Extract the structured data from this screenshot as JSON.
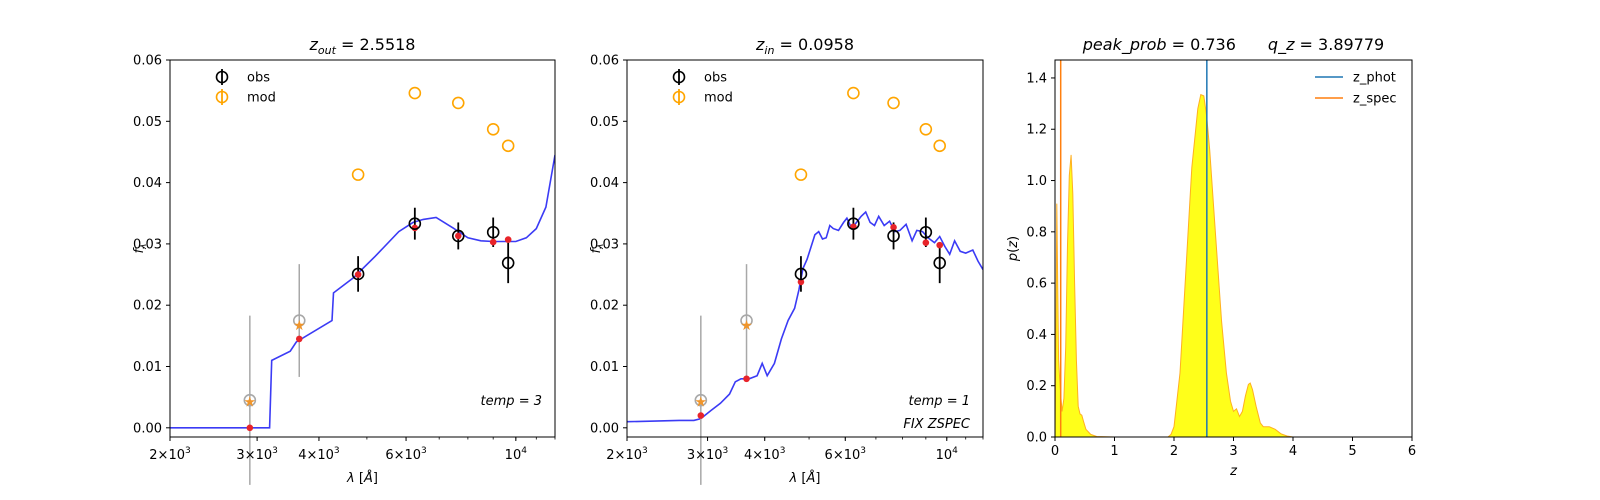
{
  "chart_data": [
    {
      "type": "scatter",
      "panel": "sed-out",
      "title": "z_out = 2.5518",
      "title_parts": {
        "var": "z",
        "sub": "out",
        "eq": " = 2.5518"
      },
      "xlabel": "λ [Å]",
      "ylabel": "f_λ",
      "xscale": "log",
      "xlim": [
        2000,
        12000
      ],
      "ylim": [
        -0.0015,
        0.06
      ],
      "xticks": [
        {
          "v": 2000,
          "m": "2",
          "e": "3"
        },
        {
          "v": 3000,
          "m": "3",
          "e": "3"
        },
        {
          "v": 4000,
          "m": "4",
          "e": "3"
        },
        {
          "v": 6000,
          "m": "6",
          "e": "3"
        },
        {
          "v": 10000,
          "m": "10",
          "e": "4"
        }
      ],
      "yticks": [
        "0.00",
        "0.01",
        "0.02",
        "0.03",
        "0.04",
        "0.05",
        "0.06"
      ],
      "legend": [
        "obs",
        "mod"
      ],
      "annotations": [
        "temp = 3"
      ],
      "template_curve": [
        [
          2000,
          0
        ],
        [
          2700,
          0
        ],
        [
          3180,
          0
        ],
        [
          3210,
          0.011
        ],
        [
          3500,
          0.0125
        ],
        [
          3600,
          0.014
        ],
        [
          4250,
          0.0175
        ],
        [
          4280,
          0.022
        ],
        [
          4700,
          0.0245
        ],
        [
          5200,
          0.028
        ],
        [
          5800,
          0.032
        ],
        [
          6200,
          0.0335
        ],
        [
          6500,
          0.034
        ],
        [
          6900,
          0.0343
        ],
        [
          7500,
          0.0325
        ],
        [
          8000,
          0.031
        ],
        [
          8500,
          0.0305
        ],
        [
          9000,
          0.0304
        ],
        [
          10000,
          0.0304
        ],
        [
          10500,
          0.031
        ],
        [
          11000,
          0.0325
        ],
        [
          11500,
          0.036
        ],
        [
          12000,
          0.0445
        ]
      ],
      "obs": [
        {
          "x": 2900,
          "y": 0.0045,
          "err": 0.0138,
          "faded": true
        },
        {
          "x": 3650,
          "y": 0.0175,
          "err": 0.0092,
          "faded": true
        },
        {
          "x": 4800,
          "y": 0.0251,
          "err": 0.0029
        },
        {
          "x": 6250,
          "y": 0.0333,
          "err": 0.0026
        },
        {
          "x": 7650,
          "y": 0.0313,
          "err": 0.0022
        },
        {
          "x": 9000,
          "y": 0.0319,
          "err": 0.0024
        },
        {
          "x": 9650,
          "y": 0.0269,
          "err": 0.0033
        }
      ],
      "mod": [
        {
          "x": 4800,
          "y": 0.0413
        },
        {
          "x": 6250,
          "y": 0.0546
        },
        {
          "x": 7650,
          "y": 0.053
        },
        {
          "x": 9000,
          "y": 0.0487
        },
        {
          "x": 9650,
          "y": 0.046
        }
      ],
      "stars": [
        {
          "x": 2900,
          "y": 0.0043
        },
        {
          "x": 3650,
          "y": 0.0168
        }
      ],
      "model_points": [
        {
          "x": 2900,
          "y": 0.0
        },
        {
          "x": 3650,
          "y": 0.0145
        },
        {
          "x": 4800,
          "y": 0.025
        },
        {
          "x": 6250,
          "y": 0.0326
        },
        {
          "x": 7650,
          "y": 0.0313
        },
        {
          "x": 9000,
          "y": 0.0303
        },
        {
          "x": 9650,
          "y": 0.0307
        }
      ]
    },
    {
      "type": "scatter",
      "panel": "sed-in",
      "title": "z_in = 0.0958",
      "title_parts": {
        "var": "z",
        "sub": "in",
        "eq": " = 0.0958"
      },
      "xlabel": "λ [Å]",
      "ylabel": "f_λ",
      "xscale": "log",
      "xlim": [
        2000,
        12000
      ],
      "ylim": [
        -0.0015,
        0.06
      ],
      "xticks": [
        {
          "v": 2000,
          "m": "2",
          "e": "3"
        },
        {
          "v": 3000,
          "m": "3",
          "e": "3"
        },
        {
          "v": 4000,
          "m": "4",
          "e": "3"
        },
        {
          "v": 6000,
          "m": "6",
          "e": "3"
        },
        {
          "v": 10000,
          "m": "10",
          "e": "4"
        }
      ],
      "yticks": [
        "0.00",
        "0.01",
        "0.02",
        "0.03",
        "0.04",
        "0.05",
        "0.06"
      ],
      "legend": [
        "obs",
        "mod"
      ],
      "annotations": [
        "temp = 1",
        "FIX ZSPEC"
      ],
      "template_curve": [
        [
          2000,
          0.001
        ],
        [
          2300,
          0.0011
        ],
        [
          2600,
          0.0012
        ],
        [
          2800,
          0.0012
        ],
        [
          2900,
          0.0015
        ],
        [
          3050,
          0.0028
        ],
        [
          3200,
          0.004
        ],
        [
          3350,
          0.0055
        ],
        [
          3450,
          0.0075
        ],
        [
          3550,
          0.008
        ],
        [
          3700,
          0.008
        ],
        [
          3850,
          0.0085
        ],
        [
          3950,
          0.0105
        ],
        [
          4050,
          0.0085
        ],
        [
          4200,
          0.0105
        ],
        [
          4350,
          0.0145
        ],
        [
          4500,
          0.0175
        ],
        [
          4650,
          0.0195
        ],
        [
          4750,
          0.0225
        ],
        [
          4850,
          0.026
        ],
        [
          4950,
          0.0275
        ],
        [
          5050,
          0.0295
        ],
        [
          5150,
          0.0315
        ],
        [
          5250,
          0.032
        ],
        [
          5350,
          0.0308
        ],
        [
          5450,
          0.031
        ],
        [
          5550,
          0.033
        ],
        [
          5650,
          0.0325
        ],
        [
          5800,
          0.0322
        ],
        [
          5950,
          0.0335
        ],
        [
          6050,
          0.0342
        ],
        [
          6200,
          0.0325
        ],
        [
          6350,
          0.0335
        ],
        [
          6500,
          0.0345
        ],
        [
          6650,
          0.0352
        ],
        [
          6800,
          0.0335
        ],
        [
          6950,
          0.033
        ],
        [
          7100,
          0.0345
        ],
        [
          7300,
          0.033
        ],
        [
          7500,
          0.0337
        ],
        [
          7700,
          0.032
        ],
        [
          7900,
          0.0322
        ],
        [
          8150,
          0.0332
        ],
        [
          8400,
          0.0305
        ],
        [
          8600,
          0.0322
        ],
        [
          8850,
          0.032
        ],
        [
          9100,
          0.031
        ],
        [
          9400,
          0.0302
        ],
        [
          9650,
          0.0312
        ],
        [
          9900,
          0.0296
        ],
        [
          10150,
          0.0283
        ],
        [
          10400,
          0.0305
        ],
        [
          10700,
          0.0288
        ],
        [
          11000,
          0.0285
        ],
        [
          11400,
          0.029
        ],
        [
          11700,
          0.0272
        ],
        [
          12000,
          0.0258
        ]
      ],
      "obs": [
        {
          "x": 2900,
          "y": 0.0045,
          "err": 0.0138,
          "faded": true
        },
        {
          "x": 3650,
          "y": 0.0175,
          "err": 0.0092,
          "faded": true
        },
        {
          "x": 4800,
          "y": 0.0251,
          "err": 0.0029
        },
        {
          "x": 6250,
          "y": 0.0333,
          "err": 0.0026
        },
        {
          "x": 7650,
          "y": 0.0313,
          "err": 0.0022
        },
        {
          "x": 9000,
          "y": 0.0319,
          "err": 0.0024
        },
        {
          "x": 9650,
          "y": 0.0269,
          "err": 0.0033
        }
      ],
      "mod": [
        {
          "x": 4800,
          "y": 0.0413
        },
        {
          "x": 6250,
          "y": 0.0546
        },
        {
          "x": 7650,
          "y": 0.053
        },
        {
          "x": 9000,
          "y": 0.0487
        },
        {
          "x": 9650,
          "y": 0.046
        }
      ],
      "stars": [
        {
          "x": 2900,
          "y": 0.0043
        },
        {
          "x": 3650,
          "y": 0.0168
        }
      ],
      "model_points": [
        {
          "x": 2900,
          "y": 0.002
        },
        {
          "x": 3650,
          "y": 0.008
        },
        {
          "x": 4800,
          "y": 0.0238
        },
        {
          "x": 6250,
          "y": 0.0328
        },
        {
          "x": 7650,
          "y": 0.0327
        },
        {
          "x": 9000,
          "y": 0.0302
        },
        {
          "x": 9650,
          "y": 0.0298
        }
      ]
    },
    {
      "type": "area",
      "panel": "pz",
      "title": "peak_prob = 0.736      q_z = 3.89779",
      "title_parts": {
        "a": "peak_prob",
        "aval": " = 0.736",
        "b": "q_z",
        "bval": " = 3.89779"
      },
      "xlabel": "z",
      "ylabel": "p(z)",
      "xlim": [
        0,
        6
      ],
      "ylim": [
        0,
        1.47
      ],
      "xticks": [
        "0",
        "1",
        "2",
        "3",
        "4",
        "5",
        "6"
      ],
      "yticks": [
        "0.0",
        "0.2",
        "0.4",
        "0.6",
        "0.8",
        "1.0",
        "1.2",
        "1.4"
      ],
      "legend": [
        "z_phot",
        "z_spec"
      ],
      "z_phot": 2.5518,
      "z_spec": 0.0958,
      "pz_curve": [
        [
          0,
          0
        ],
        [
          0.015,
          0.35
        ],
        [
          0.03,
          0.91
        ],
        [
          0.045,
          0.6
        ],
        [
          0.06,
          0.3
        ],
        [
          0.08,
          0.22
        ],
        [
          0.1,
          0.15
        ],
        [
          0.12,
          0.1
        ],
        [
          0.15,
          0.15
        ],
        [
          0.18,
          0.35
        ],
        [
          0.21,
          0.75
        ],
        [
          0.24,
          1.02
        ],
        [
          0.27,
          1.1
        ],
        [
          0.3,
          0.95
        ],
        [
          0.33,
          0.6
        ],
        [
          0.36,
          0.3
        ],
        [
          0.39,
          0.12
        ],
        [
          0.42,
          0.09
        ],
        [
          0.45,
          0.085
        ],
        [
          0.48,
          0.06
        ],
        [
          0.52,
          0.03
        ],
        [
          0.6,
          0.01
        ],
        [
          0.7,
          0.002
        ],
        [
          1.0,
          0
        ],
        [
          1.9,
          0
        ],
        [
          1.95,
          0.01
        ],
        [
          2.0,
          0.04
        ],
        [
          2.1,
          0.25
        ],
        [
          2.2,
          0.65
        ],
        [
          2.3,
          1.05
        ],
        [
          2.4,
          1.28
        ],
        [
          2.45,
          1.335
        ],
        [
          2.5,
          1.33
        ],
        [
          2.55,
          1.25
        ],
        [
          2.6,
          1.12
        ],
        [
          2.7,
          0.78
        ],
        [
          2.8,
          0.45
        ],
        [
          2.88,
          0.25
        ],
        [
          2.95,
          0.14
        ],
        [
          3.0,
          0.1
        ],
        [
          3.05,
          0.11
        ],
        [
          3.1,
          0.08
        ],
        [
          3.15,
          0.1
        ],
        [
          3.2,
          0.16
        ],
        [
          3.25,
          0.205
        ],
        [
          3.28,
          0.21
        ],
        [
          3.32,
          0.185
        ],
        [
          3.38,
          0.12
        ],
        [
          3.45,
          0.055
        ],
        [
          3.5,
          0.04
        ],
        [
          3.6,
          0.04
        ],
        [
          3.7,
          0.03
        ],
        [
          3.8,
          0.012
        ],
        [
          3.9,
          0.004
        ],
        [
          4.0,
          0
        ],
        [
          5.0,
          0
        ]
      ]
    }
  ]
}
